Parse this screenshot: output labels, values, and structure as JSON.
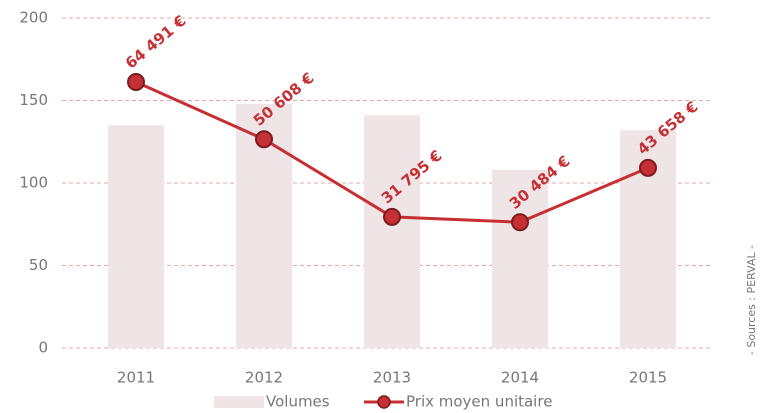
{
  "chart_data": {
    "type": "bar_line",
    "categories": [
      "2011",
      "2012",
      "2013",
      "2014",
      "2015"
    ],
    "series": [
      {
        "name": "Volumes",
        "type": "bar",
        "color": "#efe4e6",
        "values": [
          135,
          148,
          141,
          108,
          132
        ]
      },
      {
        "name": "Prix moyen unitaire",
        "type": "line",
        "axis": "y2",
        "color": "#c62f33",
        "values": [
          64491,
          50608,
          31795,
          30484,
          43658
        ],
        "value_labels": [
          "64 491 €",
          "50 608 €",
          "31 795 €",
          "30 484 €",
          "43 658 €"
        ]
      }
    ],
    "ylim": [
      0,
      200
    ],
    "yticks": [
      0,
      50,
      100,
      150,
      200
    ],
    "y2lim": [
      0,
      80000
    ],
    "grid": true,
    "legend": "bottom",
    "source": "- Sources : PERVAL -"
  }
}
